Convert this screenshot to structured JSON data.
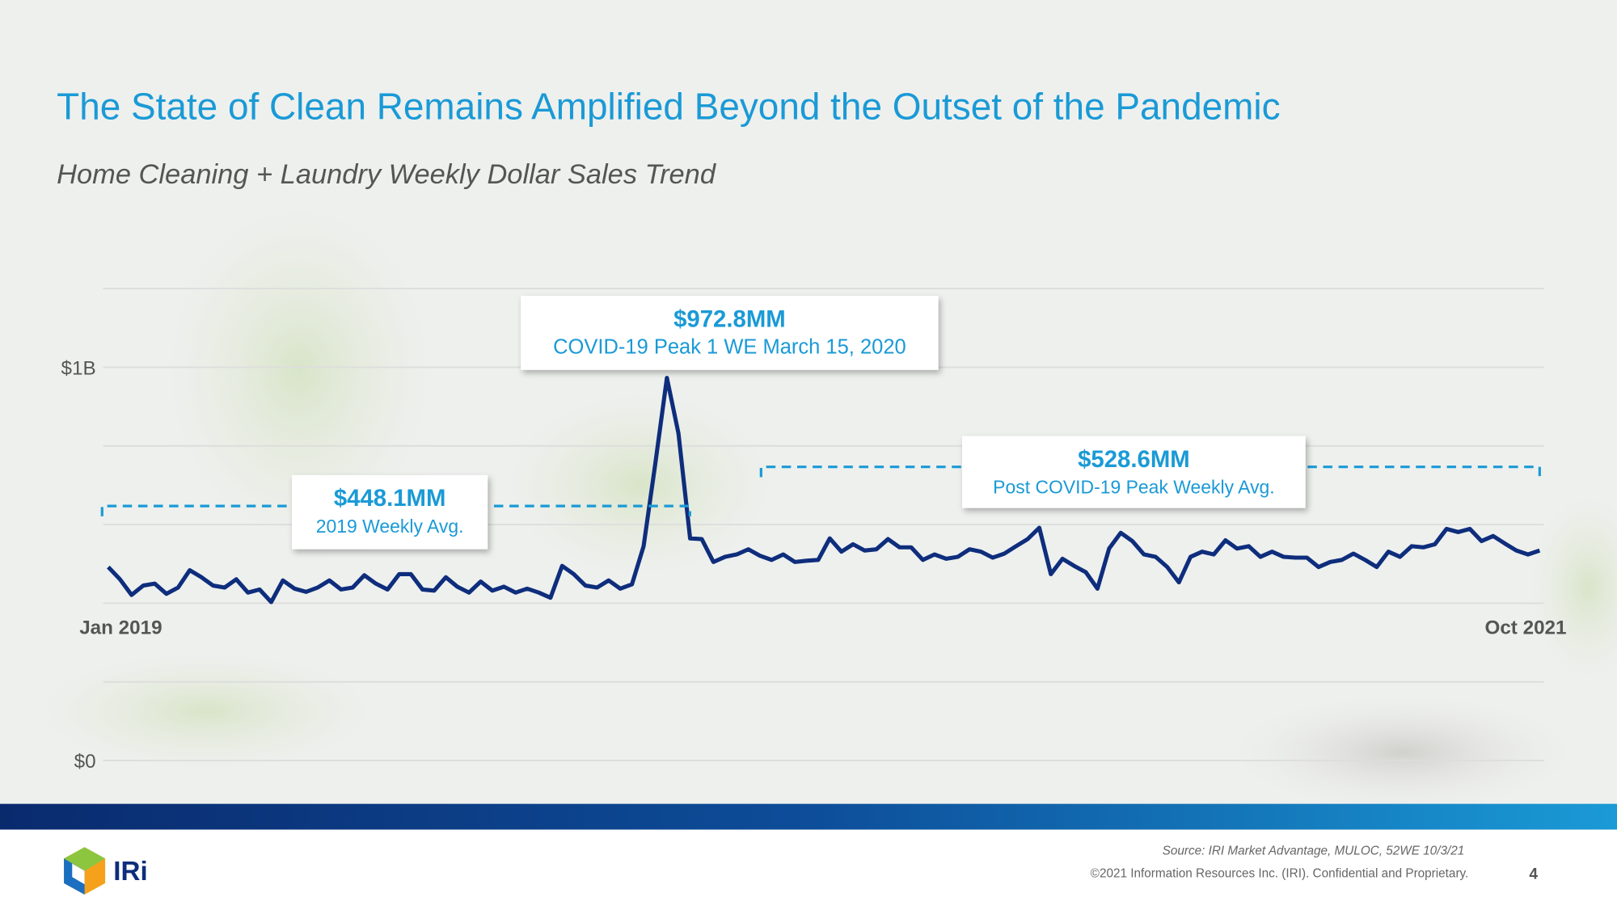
{
  "header": {
    "title": "The State of Clean Remains Amplified Beyond the Outset of the Pandemic",
    "subtitle": "Home Cleaning + Laundry Weekly Dollar Sales Trend"
  },
  "footer": {
    "source": "Source: IRI Market Advantage, MULOC, 52WE 10/3/21",
    "copyright": "©2021 Information Resources Inc. (IRI). Confidential and Proprietary.",
    "page": "4",
    "logo": "IRi"
  },
  "chart_data": {
    "type": "line",
    "color": "#0e2d7c",
    "ylim": [
      0,
      1.2
    ],
    "yticks": [
      {
        "value": 0,
        "label": "$0"
      },
      {
        "value": 1,
        "label": "$1B"
      }
    ],
    "ygrid": [
      0,
      0.2,
      0.4,
      0.6,
      0.8,
      1,
      1.2
    ],
    "categories": [
      "Jan 2019",
      null,
      null,
      null,
      null,
      null,
      null,
      null,
      null,
      null,
      null,
      null,
      null,
      null,
      null,
      null,
      null,
      null,
      null,
      null,
      null,
      null,
      null,
      null,
      null,
      null,
      null,
      null,
      null,
      null,
      null,
      null,
      null,
      null,
      null,
      null,
      null,
      null,
      null,
      null,
      null,
      null,
      null,
      null,
      null,
      null,
      null,
      null,
      null,
      null,
      null,
      null,
      null,
      null,
      null,
      null,
      null,
      null,
      null,
      null,
      null,
      null,
      null,
      null,
      null,
      null,
      null,
      null,
      null,
      null,
      null,
      null,
      null,
      null,
      null,
      null,
      null,
      null,
      null,
      null,
      null,
      null,
      null,
      null,
      null,
      null,
      null,
      null,
      null,
      null,
      null,
      null,
      null,
      null,
      null,
      null,
      null,
      null,
      null,
      null,
      null,
      null,
      null,
      null,
      null,
      null,
      null,
      null,
      null,
      null,
      null,
      null,
      null,
      null,
      null,
      null,
      null,
      null,
      null,
      null,
      null,
      null,
      null,
      "Oct 2021"
    ],
    "values": [
      0.492,
      0.461,
      0.421,
      0.445,
      0.45,
      0.424,
      0.44,
      0.484,
      0.466,
      0.445,
      0.44,
      0.461,
      0.427,
      0.435,
      0.403,
      0.458,
      0.437,
      0.429,
      0.44,
      0.458,
      0.435,
      0.44,
      0.471,
      0.45,
      0.435,
      0.474,
      0.474,
      0.435,
      0.432,
      0.466,
      0.442,
      0.427,
      0.455,
      0.432,
      0.442,
      0.427,
      0.437,
      0.427,
      0.414,
      0.495,
      0.474,
      0.445,
      0.44,
      0.458,
      0.437,
      0.448,
      0.545,
      0.754,
      0.9728,
      0.832,
      0.565,
      0.563,
      0.505,
      0.518,
      0.524,
      0.537,
      0.521,
      0.51,
      0.524,
      0.505,
      0.508,
      0.51,
      0.565,
      0.531,
      0.55,
      0.534,
      0.537,
      0.563,
      0.542,
      0.542,
      0.51,
      0.524,
      0.513,
      0.518,
      0.537,
      0.531,
      0.516,
      0.526,
      0.545,
      0.563,
      0.592,
      0.474,
      0.513,
      0.495,
      0.479,
      0.437,
      0.539,
      0.579,
      0.558,
      0.524,
      0.518,
      0.492,
      0.453,
      0.518,
      0.531,
      0.524,
      0.56,
      0.539,
      0.545,
      0.518,
      0.531,
      0.518,
      0.516,
      0.516,
      0.492,
      0.505,
      0.51,
      0.526,
      0.51,
      0.492,
      0.531,
      0.518,
      0.545,
      0.542,
      0.55,
      0.589,
      0.581,
      0.589,
      0.558,
      0.571,
      0.552,
      0.534,
      0.524,
      0.534
    ],
    "annotations": [
      {
        "value_label": "$972.8MM",
        "text": "COVID-19 Peak 1 WE March 15, 2020"
      },
      {
        "value_label": "$448.1MM",
        "text": "2019 Weekly Avg."
      },
      {
        "value_label": "$528.6MM",
        "text": "Post COVID-19 Peak Weekly Avg."
      }
    ]
  }
}
